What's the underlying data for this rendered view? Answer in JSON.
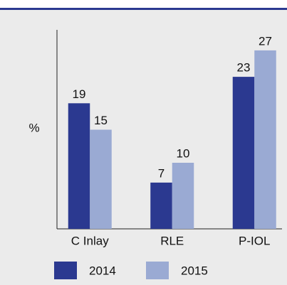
{
  "chart_data": {
    "type": "bar",
    "ylabel": "%",
    "categories": [
      "C Inlay",
      "RLE",
      "P-IOL"
    ],
    "series": [
      {
        "name": "2014",
        "color": "#2b3990",
        "values": [
          19,
          7,
          23
        ]
      },
      {
        "name": "2015",
        "color": "#9aaad3",
        "values": [
          15,
          10,
          27
        ]
      }
    ],
    "ylim": [
      0,
      30
    ]
  }
}
